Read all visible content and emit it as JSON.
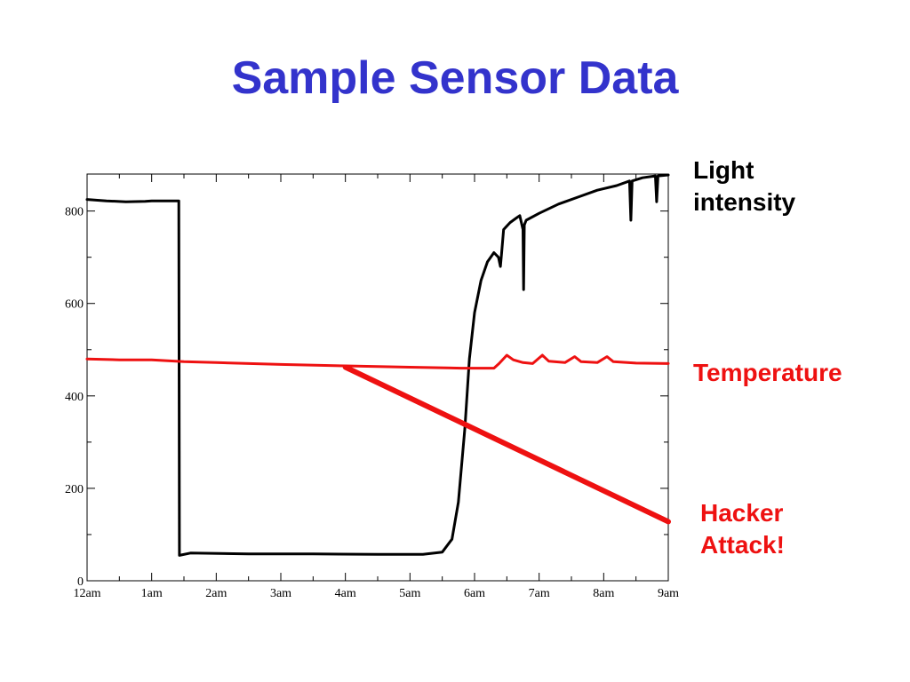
{
  "page": {
    "title": "Sample Sensor Data",
    "labels": {
      "light": [
        "Light",
        "intensity"
      ],
      "temperature": "Temperature",
      "hacker": [
        "Hacker",
        "Attack!"
      ]
    },
    "colors": {
      "title": "#3333cc",
      "light": "#000000",
      "temperature": "#ee1111",
      "hacker": "#ee1111"
    }
  },
  "chart_data": {
    "type": "line",
    "title": "",
    "xlabel": "",
    "ylabel": "",
    "x_ticks": [
      "12am",
      "1am",
      "2am",
      "3am",
      "4am",
      "5am",
      "6am",
      "7am",
      "8am",
      "9am"
    ],
    "y_ticks": [
      0,
      200,
      400,
      600,
      800
    ],
    "xlim": [
      0,
      9
    ],
    "ylim": [
      0,
      880
    ],
    "grid": false,
    "series": [
      {
        "name": "Light intensity",
        "color": "#000000",
        "points": [
          [
            0,
            825
          ],
          [
            0.3,
            822
          ],
          [
            0.6,
            820
          ],
          [
            0.9,
            821
          ],
          [
            1.0,
            822
          ],
          [
            1.42,
            822
          ],
          [
            1.43,
            55
          ],
          [
            1.6,
            60
          ],
          [
            2.5,
            58
          ],
          [
            3.5,
            58
          ],
          [
            4.5,
            57
          ],
          [
            5.2,
            57
          ],
          [
            5.5,
            62
          ],
          [
            5.65,
            90
          ],
          [
            5.75,
            170
          ],
          [
            5.85,
            330
          ],
          [
            5.92,
            480
          ],
          [
            6.0,
            580
          ],
          [
            6.1,
            650
          ],
          [
            6.2,
            690
          ],
          [
            6.3,
            710
          ],
          [
            6.37,
            700
          ],
          [
            6.4,
            680
          ],
          [
            6.42,
            710
          ],
          [
            6.45,
            760
          ],
          [
            6.55,
            775
          ],
          [
            6.65,
            785
          ],
          [
            6.7,
            790
          ],
          [
            6.75,
            760
          ],
          [
            6.76,
            630
          ],
          [
            6.77,
            770
          ],
          [
            6.8,
            780
          ],
          [
            7.0,
            795
          ],
          [
            7.3,
            815
          ],
          [
            7.6,
            830
          ],
          [
            7.9,
            845
          ],
          [
            8.2,
            855
          ],
          [
            8.4,
            865
          ],
          [
            8.42,
            780
          ],
          [
            8.44,
            865
          ],
          [
            8.6,
            872
          ],
          [
            8.8,
            876
          ],
          [
            8.82,
            820
          ],
          [
            8.84,
            876
          ],
          [
            9.0,
            878
          ]
        ]
      },
      {
        "name": "Temperature",
        "color": "#ee1111",
        "points": [
          [
            0,
            480
          ],
          [
            0.5,
            478
          ],
          [
            1.0,
            478
          ],
          [
            1.5,
            474
          ],
          [
            2.0,
            472
          ],
          [
            3.0,
            468
          ],
          [
            4.0,
            465
          ],
          [
            5.0,
            462
          ],
          [
            5.8,
            460
          ],
          [
            6.3,
            460
          ],
          [
            6.38,
            470
          ],
          [
            6.5,
            488
          ],
          [
            6.6,
            478
          ],
          [
            6.75,
            472
          ],
          [
            6.9,
            470
          ],
          [
            7.05,
            488
          ],
          [
            7.15,
            475
          ],
          [
            7.4,
            472
          ],
          [
            7.55,
            485
          ],
          [
            7.65,
            474
          ],
          [
            7.9,
            472
          ],
          [
            8.05,
            485
          ],
          [
            8.15,
            474
          ],
          [
            8.5,
            471
          ],
          [
            9.0,
            470
          ]
        ]
      },
      {
        "name": "Hacker Attack!",
        "color": "#ee1111",
        "points": [
          [
            4.0,
            462
          ],
          [
            9.0,
            128
          ]
        ]
      }
    ]
  }
}
